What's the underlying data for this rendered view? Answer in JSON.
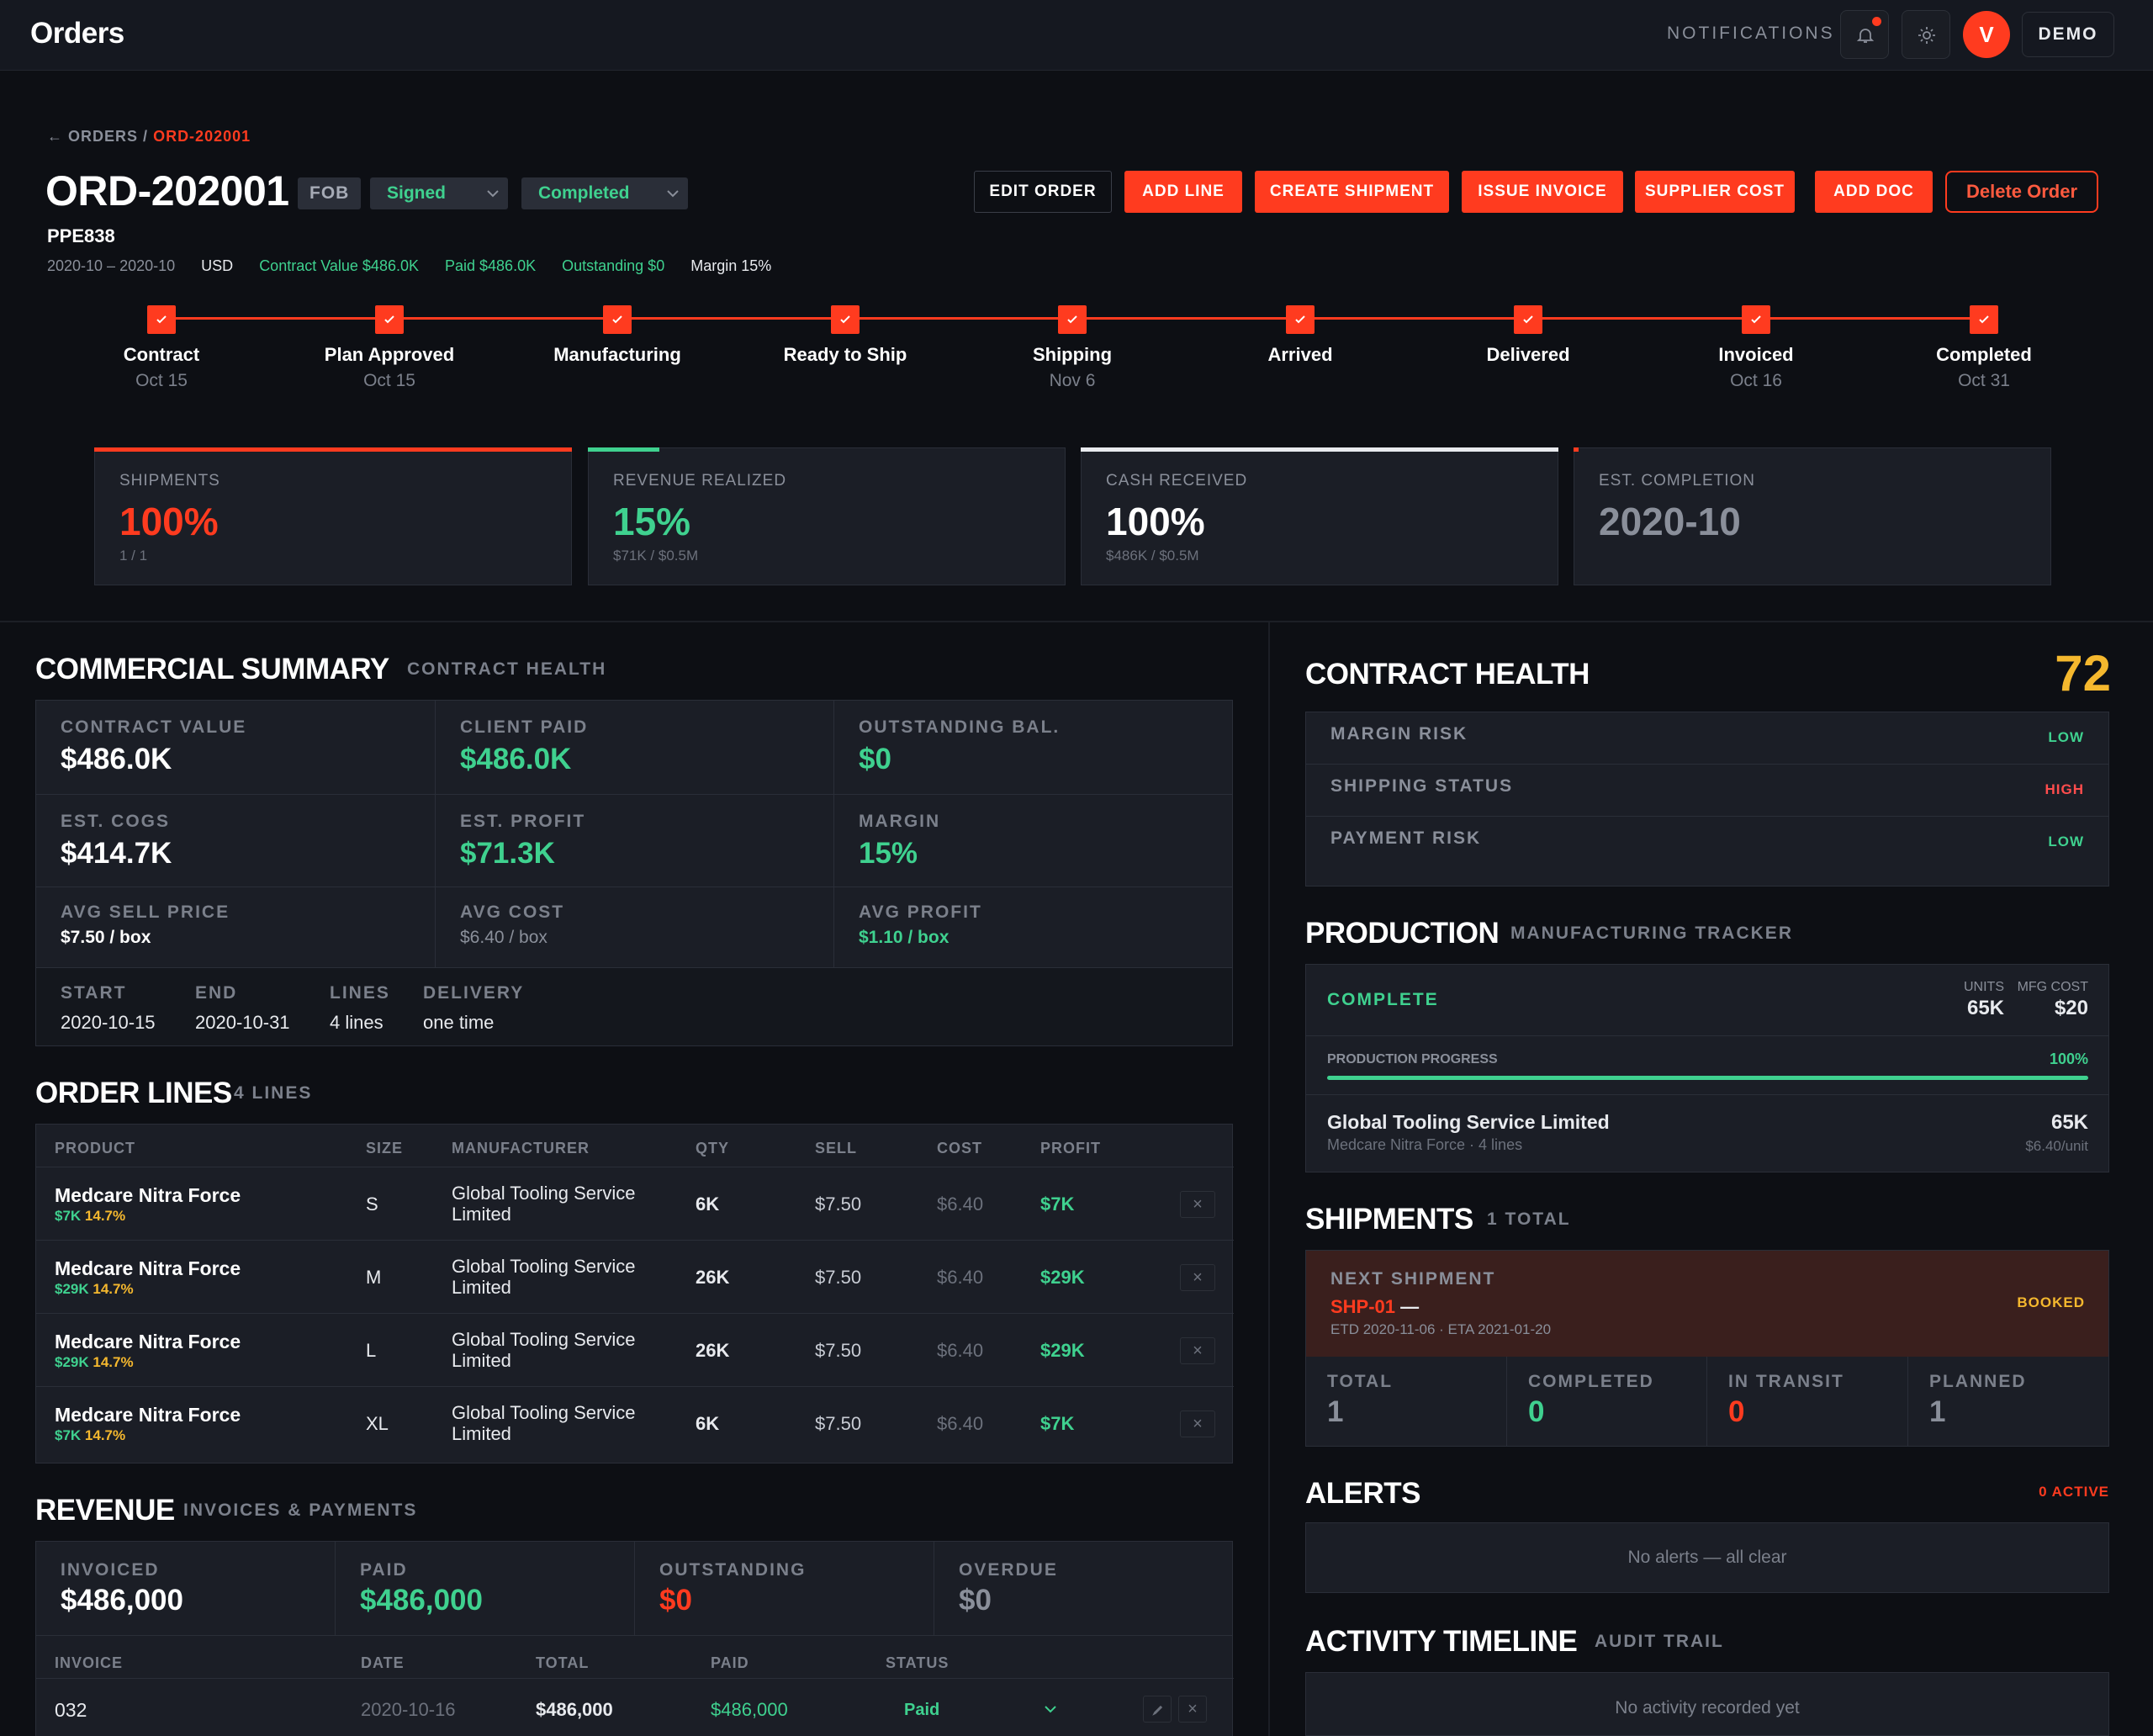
{
  "app": {
    "title": "Orders"
  },
  "topbar": {
    "notifications_label": "NOTIFICATIONS",
    "avatar_initial": "V",
    "demo_label": "DEMO"
  },
  "breadcrumb": {
    "back": "← ORDERS",
    "separator": "/",
    "current": "ORD-202001"
  },
  "order": {
    "id": "ORD-202001",
    "incoterm": "FOB",
    "contract_status": "Signed",
    "order_status": "Completed",
    "ref_code": "PPE838",
    "meta": {
      "period": "2020-10 – 2020-10",
      "currency": "USD",
      "contract_value": "Contract Value $486.0K",
      "paid": "Paid $486.0K",
      "outstanding": "Outstanding $0",
      "margin": "Margin 15%"
    }
  },
  "actions": {
    "edit": "EDIT ORDER",
    "add_line": "ADD LINE",
    "create_shipment": "CREATE SHIPMENT",
    "issue_invoice": "ISSUE INVOICE",
    "supplier_cost": "SUPPLIER COST",
    "add_doc": "ADD DOC",
    "delete": "Delete Order"
  },
  "steps": [
    {
      "label": "Contract",
      "date": "Oct 15"
    },
    {
      "label": "Plan Approved",
      "date": "Oct 15"
    },
    {
      "label": "Manufacturing",
      "date": ""
    },
    {
      "label": "Ready to Ship",
      "date": ""
    },
    {
      "label": "Shipping",
      "date": "Nov 6"
    },
    {
      "label": "Arrived",
      "date": ""
    },
    {
      "label": "Delivered",
      "date": ""
    },
    {
      "label": "Invoiced",
      "date": "Oct 16"
    },
    {
      "label": "Completed",
      "date": "Oct 31"
    }
  ],
  "kpis": [
    {
      "label": "SHIPMENTS",
      "value": "100%",
      "sub": "1 / 1",
      "progress": 1.0,
      "color": "#ff3b1f"
    },
    {
      "label": "REVENUE REALIZED",
      "value": "15%",
      "sub": "$71K / $0.5M",
      "progress": 0.15,
      "color": "#3fd18f"
    },
    {
      "label": "CASH RECEIVED",
      "value": "100%",
      "sub": "$486K / $0.5M",
      "progress": 1.0,
      "color": "#e8eaee"
    },
    {
      "label": "EST. COMPLETION",
      "value": "2020-10",
      "sub": "",
      "progress": 0.01,
      "color": "#ff3b1f"
    }
  ],
  "commercial": {
    "title": "COMMERCIAL SUMMARY",
    "subtitle": "CONTRACT HEALTH",
    "contract_value": {
      "label": "CONTRACT VALUE",
      "value": "$486.0K"
    },
    "client_paid": {
      "label": "CLIENT PAID",
      "value": "$486.0K"
    },
    "outstanding": {
      "label": "OUTSTANDING BAL.",
      "value": "$0"
    },
    "est_cogs": {
      "label": "EST. COGS",
      "value": "$414.7K"
    },
    "est_profit": {
      "label": "EST. PROFIT",
      "value": "$71.3K"
    },
    "margin": {
      "label": "MARGIN",
      "value": "15%"
    },
    "avg_sell": {
      "label": "AVG SELL PRICE",
      "value": "$7.50 / box"
    },
    "avg_cost": {
      "label": "AVG COST",
      "value": "$6.40 / box"
    },
    "avg_profit": {
      "label": "AVG PROFIT",
      "value": "$1.10 / box"
    },
    "start": {
      "label": "START",
      "value": "2020-10-15"
    },
    "end": {
      "label": "END",
      "value": "2020-10-31"
    },
    "lines": {
      "label": "LINES",
      "value": "4 lines"
    },
    "delivery": {
      "label": "DELIVERY",
      "value": "one time"
    }
  },
  "order_lines": {
    "title": "ORDER LINES",
    "subtitle": "4 LINES",
    "headers": [
      "PRODUCT",
      "SIZE",
      "MANUFACTURER",
      "QTY",
      "SELL",
      "COST",
      "PROFIT"
    ],
    "rows": [
      {
        "product": "Medcare Nitra Force",
        "sub_profit": "$7K",
        "sub_margin": "14.7%",
        "size": "S",
        "manufacturer": "Global Tooling Service Limited",
        "qty": "6K",
        "sell": "$7.50",
        "cost": "$6.40",
        "profit": "$7K"
      },
      {
        "product": "Medcare Nitra Force",
        "sub_profit": "$29K",
        "sub_margin": "14.7%",
        "size": "M",
        "manufacturer": "Global Tooling Service Limited",
        "qty": "26K",
        "sell": "$7.50",
        "cost": "$6.40",
        "profit": "$29K"
      },
      {
        "product": "Medcare Nitra Force",
        "sub_profit": "$29K",
        "sub_margin": "14.7%",
        "size": "L",
        "manufacturer": "Global Tooling Service Limited",
        "qty": "26K",
        "sell": "$7.50",
        "cost": "$6.40",
        "profit": "$29K"
      },
      {
        "product": "Medcare Nitra Force",
        "sub_profit": "$7K",
        "sub_margin": "14.7%",
        "size": "XL",
        "manufacturer": "Global Tooling Service Limited",
        "qty": "6K",
        "sell": "$7.50",
        "cost": "$6.40",
        "profit": "$7K"
      }
    ],
    "delete_glyph": "×"
  },
  "revenue": {
    "title": "REVENUE",
    "subtitle": "INVOICES & PAYMENTS",
    "invoiced": {
      "label": "INVOICED",
      "value": "$486,000"
    },
    "paid": {
      "label": "PAID",
      "value": "$486,000"
    },
    "outstanding": {
      "label": "OUTSTANDING",
      "value": "$0"
    },
    "overdue": {
      "label": "OVERDUE",
      "value": "$0"
    },
    "headers": [
      "INVOICE",
      "DATE",
      "TOTAL",
      "PAID",
      "STATUS"
    ],
    "rows": [
      {
        "invoice": "032",
        "date": "2020-10-16",
        "total": "$486,000",
        "paid": "$486,000",
        "status": "Paid"
      }
    ]
  },
  "health": {
    "title": "CONTRACT HEALTH",
    "score": "72",
    "rows": [
      {
        "label": "MARGIN RISK",
        "value": "LOW",
        "color": "#3fd18f"
      },
      {
        "label": "SHIPPING STATUS",
        "value": "HIGH",
        "color": "#ff4d4d"
      },
      {
        "label": "PAYMENT RISK",
        "value": "LOW",
        "color": "#3fd18f"
      }
    ]
  },
  "production": {
    "title": "PRODUCTION",
    "subtitle": "MANUFACTURING TRACKER",
    "status": "COMPLETE",
    "units_label": "UNITS",
    "units": "65K",
    "mfg_cost_label": "MFG COST",
    "mfg_cost": "$20",
    "progress_label": "PRODUCTION PROGRESS",
    "progress_text": "100%",
    "progress": 1.0,
    "supplier": "Global Tooling Service Limited",
    "supplier_sub": "Medcare Nitra Force · 4 lines",
    "supplier_units": "65K",
    "supplier_unit_cost": "$6.40/unit"
  },
  "shipments": {
    "title": "SHIPMENTS",
    "subtitle": "1 TOTAL",
    "next_label": "NEXT SHIPMENT",
    "next_id": "SHP-01",
    "next_dash": "—",
    "next_dates": "ETD 2020-11-06 · ETA 2021-01-20",
    "next_status": "BOOKED",
    "stats": [
      {
        "label": "TOTAL",
        "value": "1",
        "color": "#8a8f9a"
      },
      {
        "label": "COMPLETED",
        "value": "0",
        "color": "#3fd18f"
      },
      {
        "label": "IN TRANSIT",
        "value": "0",
        "color": "#ff3b1f"
      },
      {
        "label": "PLANNED",
        "value": "1",
        "color": "#8a8f9a"
      }
    ]
  },
  "alerts": {
    "title": "ALERTS",
    "count": "0 ACTIVE",
    "empty": "No alerts — all clear"
  },
  "activity": {
    "title": "ACTIVITY TIMELINE",
    "subtitle": "AUDIT TRAIL",
    "empty": "No activity recorded yet"
  }
}
